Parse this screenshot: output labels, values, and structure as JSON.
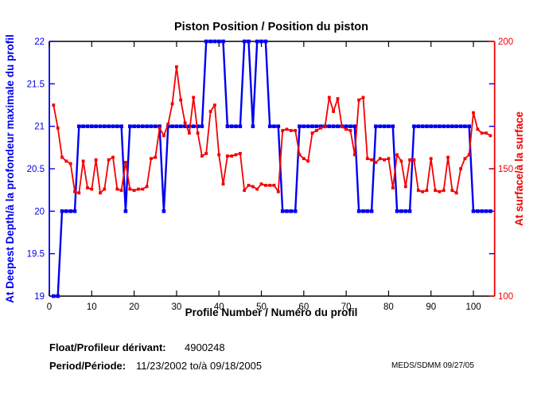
{
  "chart_data": {
    "type": "line",
    "title": "Piston Position / Position du piston",
    "xlabel": "Profile Number / Numéro du profil",
    "ylabel_left": "At Deepest Depth/à la profondeur maximale du profil",
    "ylabel_right": "At surface/à la surface",
    "xlim": [
      0,
      105
    ],
    "x_ticks": [
      0,
      10,
      20,
      30,
      40,
      50,
      60,
      70,
      80,
      90,
      100
    ],
    "y_left": {
      "lim": [
        19,
        22
      ],
      "ticks": [
        19,
        19.5,
        20,
        20.5,
        21,
        21.5,
        22
      ],
      "color": "#0000f0"
    },
    "y_right": {
      "lim": [
        100,
        200
      ],
      "ticks": [
        100,
        150,
        200
      ],
      "color": "#f40000"
    },
    "x_start": 1,
    "grid": false,
    "legend": "none",
    "series": [
      {
        "name": "At Deepest Depth",
        "axis": "left",
        "color": "#0000f0",
        "values": [
          19,
          19,
          20,
          20,
          20,
          20,
          21,
          21,
          21,
          21,
          21,
          21,
          21,
          21,
          21,
          21,
          21,
          20,
          21,
          21,
          21,
          21,
          21,
          21,
          21,
          21,
          20,
          21,
          21,
          21,
          21,
          21,
          21,
          21,
          21,
          21,
          22,
          22,
          22,
          22,
          22,
          21,
          21,
          21,
          21,
          22,
          22,
          21,
          22,
          22,
          22,
          21,
          21,
          21,
          20,
          20,
          20,
          20,
          21,
          21,
          21,
          21,
          21,
          21,
          21,
          21,
          21,
          21,
          21,
          21,
          21,
          21,
          20,
          20,
          20,
          20,
          21,
          21,
          21,
          21,
          21,
          20,
          20,
          20,
          20,
          21,
          21,
          21,
          21,
          21,
          21,
          21,
          21,
          21,
          21,
          21,
          21,
          21,
          21,
          20,
          20,
          20,
          20,
          20
        ]
      },
      {
        "name": "At surface",
        "axis": "right",
        "color": "#f40000",
        "values": [
          175,
          166,
          154.5,
          153,
          152,
          141,
          140.5,
          153,
          142.5,
          142,
          153.5,
          140.5,
          142,
          153.5,
          154.5,
          142,
          141.5,
          152.5,
          142,
          141.5,
          142,
          142,
          143,
          154,
          154.5,
          166,
          163,
          167.5,
          175.5,
          190,
          177,
          168,
          164,
          178,
          164,
          155,
          156,
          172.5,
          175,
          155.5,
          144,
          155,
          155,
          155.5,
          156,
          141.5,
          143.5,
          143,
          142,
          144,
          143.5,
          143.5,
          143.5,
          141,
          165,
          165.5,
          165,
          165,
          155.5,
          154,
          153,
          164,
          165,
          166,
          166.5,
          178,
          172.5,
          177.5,
          166.5,
          165.5,
          165,
          155.5,
          177,
          178,
          154,
          153.5,
          152.5,
          154,
          153.5,
          154,
          142.5,
          155.5,
          153,
          143,
          153.5,
          153.5,
          141.5,
          141,
          141.5,
          154,
          141.5,
          141,
          141.5,
          154.5,
          141.5,
          140.5,
          150,
          154,
          155.5,
          172,
          165.5,
          164,
          164,
          163
        ]
      }
    ]
  },
  "annotations": {
    "float_label": "Float/Profileur dérivant:",
    "float_value": "4900248",
    "period_label": "Period/Période:",
    "period_value": "11/23/2002  to/à  09/18/2005",
    "stamp": "MEDS/SDMM  09/27/05"
  }
}
